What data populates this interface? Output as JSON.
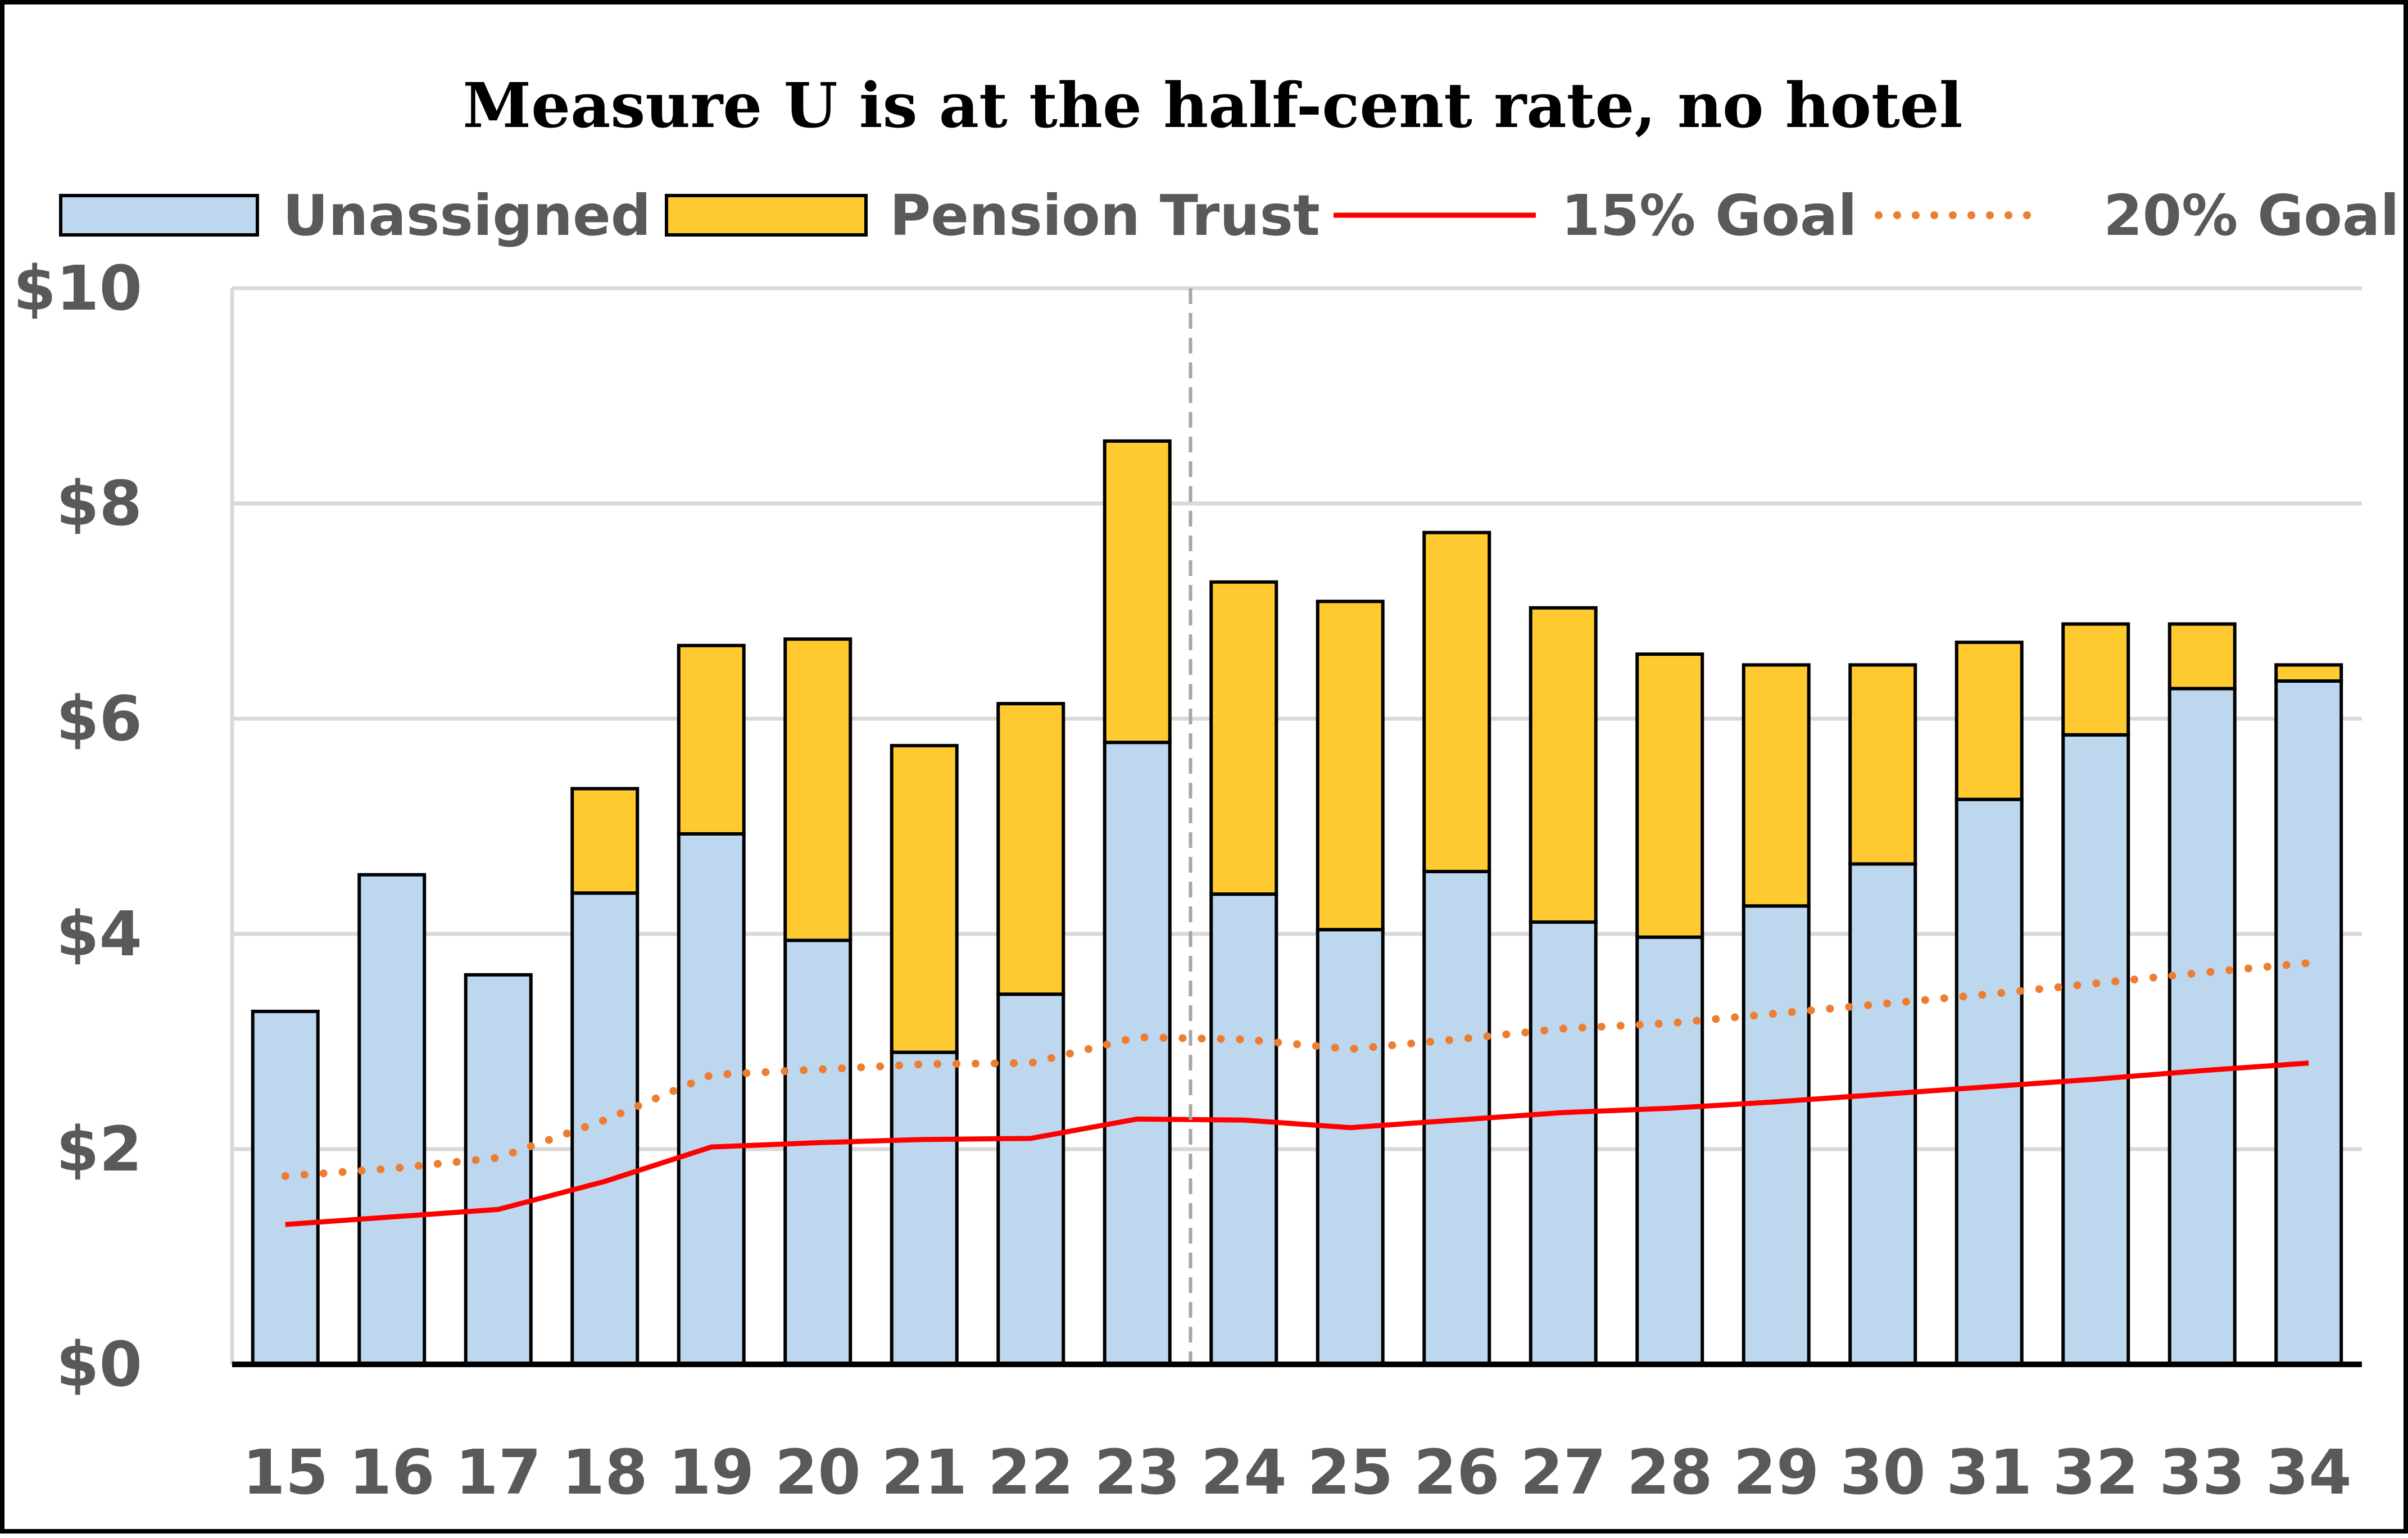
{
  "chart_data": {
    "type": "bar",
    "title": "Measure U is at the half-cent rate, no hotel",
    "categories": [
      "15",
      "16",
      "17",
      "18",
      "19",
      "20",
      "21",
      "22",
      "23",
      "24",
      "25",
      "26",
      "27",
      "28",
      "29",
      "30",
      "31",
      "32",
      "33",
      "34"
    ],
    "stacked": true,
    "series": [
      {
        "name": "Unassigned",
        "kind": "bar",
        "color": "#BDD7EE",
        "values": [
          3.28,
          4.55,
          3.62,
          4.38,
          4.93,
          3.94,
          2.9,
          3.44,
          5.78,
          4.37,
          4.04,
          4.58,
          4.11,
          3.97,
          4.26,
          4.65,
          5.25,
          5.85,
          6.28,
          6.35
        ]
      },
      {
        "name": "Pension Trust",
        "kind": "bar",
        "color": "#FFCA2F",
        "values": [
          0,
          0,
          0,
          0.97,
          1.75,
          2.8,
          2.85,
          2.7,
          2.8,
          2.9,
          3.05,
          3.15,
          2.92,
          2.63,
          2.24,
          1.85,
          1.46,
          1.03,
          0.6,
          0.15
        ]
      },
      {
        "name": "15% Goal",
        "kind": "line",
        "color": "#FF0000",
        "values": [
          1.3,
          1.37,
          1.44,
          1.7,
          2.02,
          2.06,
          2.09,
          2.1,
          2.28,
          2.27,
          2.2,
          2.27,
          2.34,
          2.38,
          2.44,
          2.51,
          2.58,
          2.65,
          2.73,
          2.8
        ]
      },
      {
        "name": "20% Goal",
        "kind": "line",
        "style": "dotted",
        "color": "#ED7D31",
        "values": [
          1.75,
          1.82,
          1.92,
          2.27,
          2.69,
          2.74,
          2.79,
          2.8,
          3.04,
          3.02,
          2.93,
          3.02,
          3.12,
          3.17,
          3.26,
          3.35,
          3.44,
          3.54,
          3.64,
          3.73
        ]
      }
    ],
    "gap_fill_color": "#FFFF00",
    "ylim": [
      0,
      10
    ],
    "yticks": [
      0,
      2,
      4,
      6,
      8,
      10
    ],
    "ytick_labels": [
      "$0",
      "$2",
      "$4",
      "$6",
      "$8",
      "$10"
    ],
    "vertical_marker_after_category": "23",
    "grid": true,
    "legend_position": "top"
  }
}
